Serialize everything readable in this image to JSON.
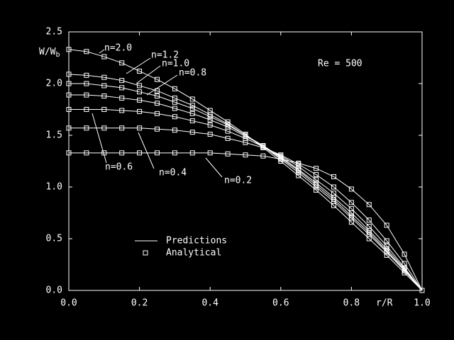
{
  "chart_data": {
    "type": "line",
    "ylabel": {
      "main": "W/W",
      "sub": "b"
    },
    "xlabel": "r/R",
    "annotation": "Re = 500",
    "legend": [
      "Predictions",
      "Analytical"
    ],
    "x": [
      0,
      0.05,
      0.1,
      0.15,
      0.2,
      0.25,
      0.3,
      0.35,
      0.4,
      0.45,
      0.5,
      0.55,
      0.6,
      0.65,
      0.7,
      0.75,
      0.8,
      0.85,
      0.9,
      0.95,
      1.0
    ],
    "series": [
      {
        "name": "n=2.0",
        "color": "#ffffff",
        "values": [
          2.33,
          2.31,
          2.26,
          2.2,
          2.12,
          2.04,
          1.95,
          1.85,
          1.74,
          1.63,
          1.51,
          1.38,
          1.25,
          1.11,
          0.97,
          0.82,
          0.66,
          0.5,
          0.34,
          0.17,
          0
        ]
      },
      {
        "name": "n=1.2",
        "color": "#ffffff",
        "values": [
          2.09,
          2.08,
          2.06,
          2.03,
          1.98,
          1.93,
          1.86,
          1.79,
          1.7,
          1.61,
          1.5,
          1.39,
          1.27,
          1.14,
          1.0,
          0.86,
          0.7,
          0.54,
          0.37,
          0.19,
          0
        ]
      },
      {
        "name": "n=1.0",
        "color": "#ffffff",
        "values": [
          2.0,
          2.0,
          1.98,
          1.96,
          1.92,
          1.88,
          1.82,
          1.76,
          1.68,
          1.6,
          1.5,
          1.4,
          1.28,
          1.16,
          1.02,
          0.88,
          0.72,
          0.56,
          0.38,
          0.2,
          0
        ]
      },
      {
        "name": "n=0.8",
        "color": "#ffffff",
        "values": [
          1.89,
          1.89,
          1.88,
          1.86,
          1.84,
          1.81,
          1.76,
          1.71,
          1.65,
          1.58,
          1.49,
          1.4,
          1.29,
          1.17,
          1.04,
          0.9,
          0.75,
          0.58,
          0.4,
          0.21,
          0
        ]
      },
      {
        "name": "n=0.6",
        "color": "#ffffff",
        "values": [
          1.75,
          1.75,
          1.75,
          1.74,
          1.73,
          1.71,
          1.68,
          1.64,
          1.6,
          1.54,
          1.47,
          1.39,
          1.3,
          1.2,
          1.07,
          0.94,
          0.79,
          0.62,
          0.43,
          0.22,
          0
        ]
      },
      {
        "name": "n=0.4",
        "color": "#ffffff",
        "values": [
          1.57,
          1.57,
          1.57,
          1.57,
          1.57,
          1.56,
          1.55,
          1.53,
          1.51,
          1.47,
          1.43,
          1.38,
          1.31,
          1.22,
          1.12,
          1.0,
          0.85,
          0.68,
          0.48,
          0.26,
          0
        ]
      },
      {
        "name": "n=0.2",
        "color": "#ffffff",
        "values": [
          1.33,
          1.33,
          1.33,
          1.33,
          1.33,
          1.33,
          1.33,
          1.33,
          1.33,
          1.32,
          1.31,
          1.3,
          1.27,
          1.23,
          1.18,
          1.1,
          0.98,
          0.83,
          0.63,
          0.35,
          0
        ]
      }
    ],
    "xlim": [
      0,
      1.0
    ],
    "ylim": [
      0,
      2.5
    ],
    "xticks": [
      {
        "value": 0,
        "label": "0.0"
      },
      {
        "value": 0.2,
        "label": "0.2"
      },
      {
        "value": 0.4,
        "label": "0.4"
      },
      {
        "value": 0.6,
        "label": "0.6"
      },
      {
        "value": 0.8,
        "label": "0.8"
      },
      {
        "value": 1.0,
        "label": "1.0"
      }
    ],
    "yticks": [
      {
        "value": 0,
        "label": "0.0"
      },
      {
        "value": 0.5,
        "label": "0.5"
      },
      {
        "value": 1.0,
        "label": "1.0"
      },
      {
        "value": 1.5,
        "label": "1.5"
      },
      {
        "value": 2.0,
        "label": "2.0"
      },
      {
        "value": 2.5,
        "label": "2.5"
      }
    ]
  }
}
